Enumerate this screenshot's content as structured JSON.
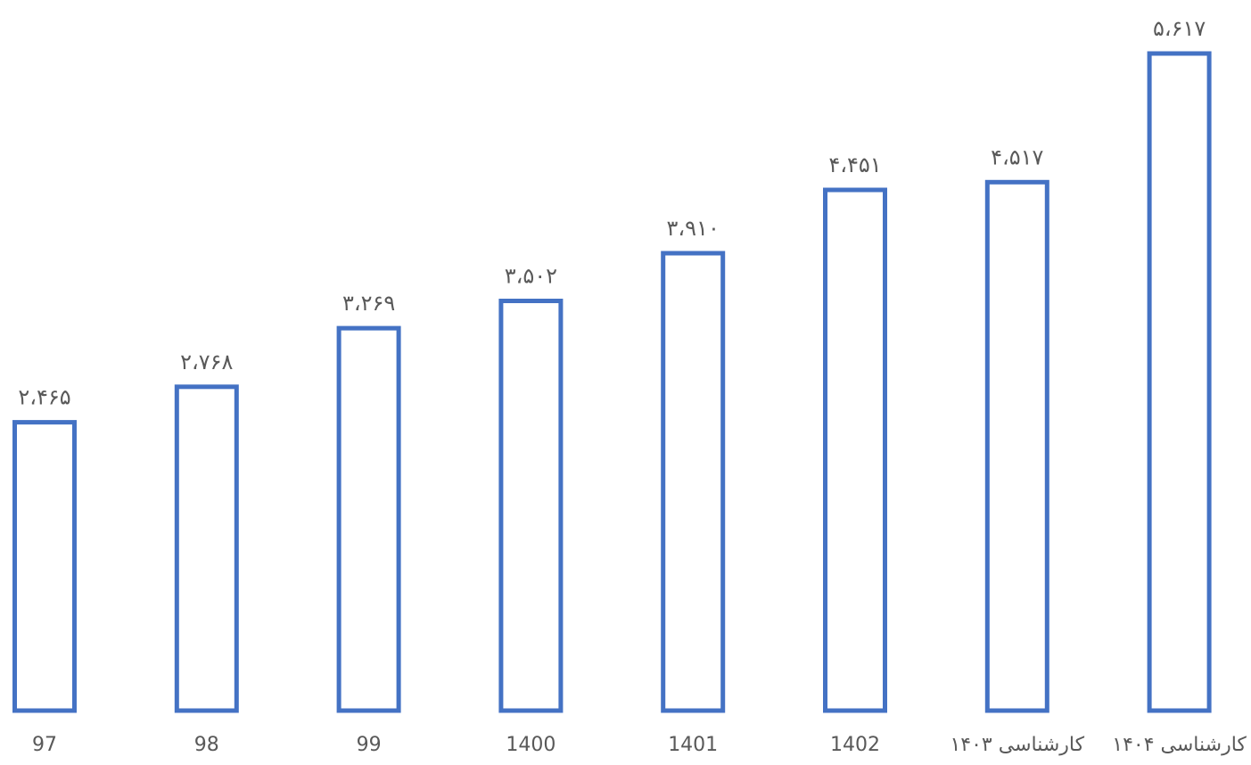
{
  "chart_data": {
    "type": "bar",
    "categories": [
      "97",
      "98",
      "99",
      "1400",
      "1401",
      "1402",
      "کارشناسی ۱۴۰۳",
      "کارشناسی ۱۴۰۴"
    ],
    "values": [
      2465,
      2768,
      3269,
      3502,
      3910,
      4451,
      4517,
      5617
    ],
    "value_labels": [
      "۲،۴۶۵",
      "۲،۷۶۸",
      "۳،۲۶۹",
      "۳،۵۰۲",
      "۳،۹۱۰",
      "۴،۴۵۱",
      "۴،۵۱۷",
      "۵،۶۱۷"
    ],
    "title": "",
    "xlabel": "",
    "ylabel": "",
    "ylim": [
      0,
      5617
    ],
    "grid": false,
    "legend": "none",
    "colors": {
      "bar_outline": "#4472C4",
      "bar_fill": "#ffffff",
      "text": "#595959"
    }
  }
}
